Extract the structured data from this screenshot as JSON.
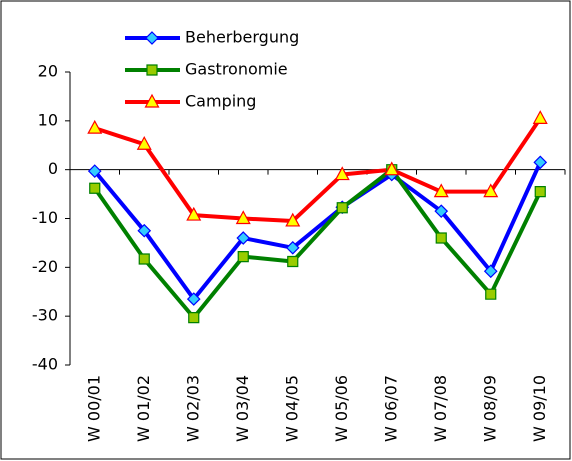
{
  "chart_data": {
    "type": "line",
    "categories": [
      "W 00/01",
      "W 01/02",
      "W 02/03",
      "W 03/04",
      "W 04/05",
      "W 05/06",
      "W 06/07",
      "W 07/08",
      "W 08/09",
      "W 09/10"
    ],
    "series": [
      {
        "name": "Beherbergung",
        "color": "#0000ff",
        "marker": "diamond",
        "marker_fill": "#33ccff",
        "values": [
          -0.3,
          -12.5,
          -26.5,
          -14,
          -16,
          -7.7,
          -1,
          -8.5,
          -20.8,
          1.5
        ]
      },
      {
        "name": "Gastronomie",
        "color": "#008000",
        "marker": "square",
        "marker_fill": "#99cc00",
        "values": [
          -3.8,
          -18.3,
          -30.3,
          -17.8,
          -18.8,
          -7.8,
          0,
          -14,
          -25.5,
          -4.5
        ]
      },
      {
        "name": "Camping",
        "color": "#ff0000",
        "marker": "triangle",
        "marker_fill": "#ffff00",
        "values": [
          8.5,
          5.2,
          -9.3,
          -10,
          -10.5,
          -1,
          0,
          -4.5,
          -4.5,
          10.5
        ]
      }
    ],
    "ylim": [
      -40,
      20
    ],
    "yticks": [
      -40,
      -30,
      -20,
      -10,
      0,
      10,
      20
    ],
    "grid": false,
    "legend": "top"
  }
}
